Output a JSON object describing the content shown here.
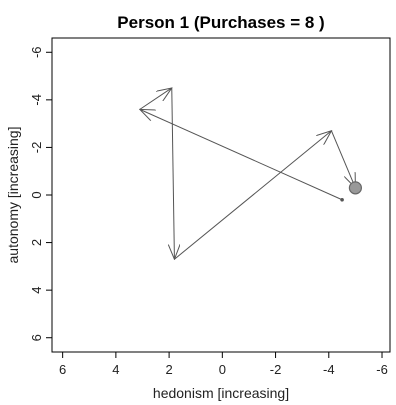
{
  "chart_data": {
    "type": "line",
    "title": "Person 1 (Purchases = 8 )",
    "xlabel": "hedonism [increasing]",
    "ylabel": "autonomy [increasing]",
    "xlim": [
      6.4,
      -6.3
    ],
    "ylim": [
      6.6,
      -6.6
    ],
    "x_ticks": [
      6,
      4,
      2,
      0,
      -2,
      -4,
      -6
    ],
    "y_ticks": [
      -6,
      -4,
      -2,
      0,
      2,
      4,
      6
    ],
    "grid": false,
    "series": [
      {
        "points": [
          {
            "x": -4.5,
            "y": 0.2
          },
          {
            "x": 3.1,
            "y": -3.6
          },
          {
            "x": 1.9,
            "y": -4.5
          },
          {
            "x": 1.8,
            "y": 2.7
          },
          {
            "x": -4.1,
            "y": -2.7
          },
          {
            "x": -5.0,
            "y": -0.3
          }
        ],
        "arrows": true,
        "end_marker": "circle"
      }
    ],
    "colors": {
      "line": "#555555",
      "end_marker_fill": "#999999",
      "end_marker_stroke": "#666666",
      "axis": "#000000"
    }
  }
}
